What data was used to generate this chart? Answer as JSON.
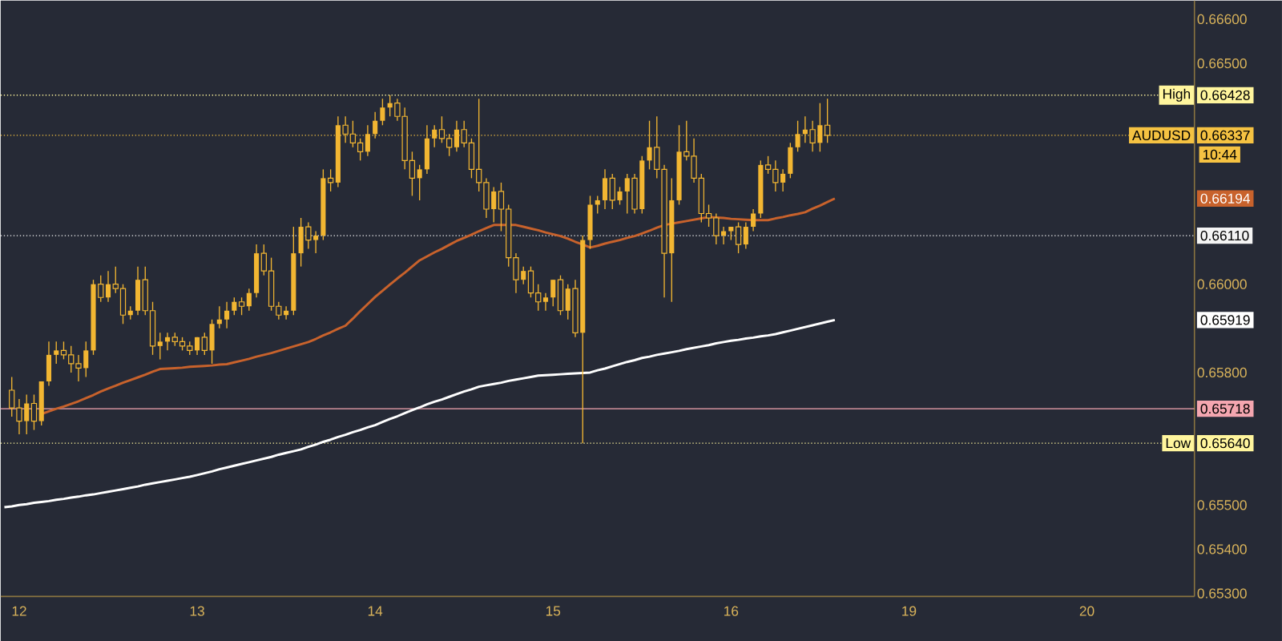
{
  "chart_data": {
    "type": "candlestick",
    "color": "#f2b632",
    "categories": [
      null,
      null,
      "12",
      null,
      null,
      null,
      null,
      null,
      null,
      null,
      null,
      null,
      null,
      null,
      null,
      null,
      null,
      null,
      null,
      null,
      null,
      null,
      null,
      null,
      null,
      null,
      "13",
      null,
      null,
      null,
      null,
      null,
      null,
      null,
      null,
      null,
      null,
      null,
      null,
      null,
      null,
      null,
      null,
      null,
      null,
      null,
      null,
      null,
      null,
      null,
      "14",
      null,
      null,
      null,
      null,
      null,
      null,
      null,
      null,
      null,
      null,
      null,
      null,
      null,
      null,
      null,
      null,
      null,
      null,
      null,
      null,
      null,
      null,
      null,
      "15",
      null,
      null,
      null,
      null,
      null,
      null,
      null,
      null,
      null,
      null,
      null,
      null,
      null,
      null,
      null,
      null,
      null,
      null,
      null,
      null,
      null,
      null,
      null,
      "16",
      null,
      null,
      null,
      null,
      null,
      null,
      null,
      null,
      null,
      null,
      null,
      null,
      null,
      null,
      null,
      null,
      null,
      null,
      null,
      null,
      null,
      null,
      null,
      "19",
      null,
      null,
      null,
      null,
      null,
      null,
      null,
      null,
      null,
      null,
      null,
      null,
      null,
      null,
      null,
      null,
      null,
      null,
      null,
      null,
      null,
      null,
      null,
      "20",
      null,
      null,
      null,
      null,
      null,
      null,
      null,
      null,
      null,
      null,
      null,
      null,
      null,
      null
    ],
    "ohlc": [
      null,
      [
        0.6576,
        0.6579,
        0.657,
        0.6572
      ],
      [
        0.6572,
        0.6574,
        0.6566,
        0.6569
      ],
      [
        0.6569,
        0.6575,
        0.6566,
        0.6573
      ],
      [
        0.6573,
        0.6575,
        0.6567,
        0.6569
      ],
      [
        0.6569,
        0.6578,
        0.6568,
        0.6578
      ],
      [
        0.6578,
        0.6587,
        0.6577,
        0.6584
      ],
      [
        0.6584,
        0.6587,
        0.6582,
        0.6585
      ],
      [
        0.6585,
        0.6587,
        0.6583,
        0.6584
      ],
      [
        0.6584,
        0.6586,
        0.658,
        0.6582
      ],
      [
        0.6582,
        0.6584,
        0.6578,
        0.6581
      ],
      [
        0.6581,
        0.6587,
        0.6579,
        0.6585
      ],
      [
        0.6585,
        0.6601,
        0.6584,
        0.66
      ],
      [
        0.66,
        0.6602,
        0.6596,
        0.6597
      ],
      [
        0.6597,
        0.6603,
        0.6596,
        0.66
      ],
      [
        0.66,
        0.6604,
        0.6598,
        0.6599
      ],
      [
        0.6599,
        0.66,
        0.6591,
        0.6593
      ],
      [
        0.6593,
        0.6595,
        0.6592,
        0.6594
      ],
      [
        0.6594,
        0.6604,
        0.6593,
        0.6601
      ],
      [
        0.6601,
        0.6604,
        0.6593,
        0.6594
      ],
      [
        0.6594,
        0.6596,
        0.6584,
        0.6586
      ],
      [
        0.6586,
        0.6589,
        0.6583,
        0.6587
      ],
      [
        0.6587,
        0.6589,
        0.6585,
        0.6588
      ],
      [
        0.6588,
        0.6589,
        0.6586,
        0.6587
      ],
      [
        0.6587,
        0.6588,
        0.6585,
        0.6586
      ],
      [
        0.6586,
        0.6587,
        0.6584,
        0.6585
      ],
      [
        0.6585,
        0.6588,
        0.6584,
        0.6588
      ],
      [
        0.6588,
        0.6589,
        0.6584,
        0.6585
      ],
      [
        0.6585,
        0.6592,
        0.6582,
        0.6591
      ],
      [
        0.6591,
        0.6595,
        0.659,
        0.6592
      ],
      [
        0.6592,
        0.6596,
        0.659,
        0.6594
      ],
      [
        0.6594,
        0.6597,
        0.6593,
        0.6596
      ],
      [
        0.6596,
        0.6597,
        0.6593,
        0.6595
      ],
      [
        0.6595,
        0.6599,
        0.6594,
        0.6598
      ],
      [
        0.6598,
        0.6609,
        0.6597,
        0.6607
      ],
      [
        0.6607,
        0.6609,
        0.6602,
        0.6603
      ],
      [
        0.6603,
        0.6606,
        0.6594,
        0.6595
      ],
      [
        0.6595,
        0.6596,
        0.6592,
        0.6593
      ],
      [
        0.6593,
        0.6595,
        0.6592,
        0.6594
      ],
      [
        0.6594,
        0.6613,
        0.6593,
        0.6607
      ],
      [
        0.6607,
        0.6615,
        0.6604,
        0.6613
      ],
      [
        0.6613,
        0.6614,
        0.6608,
        0.661
      ],
      [
        0.661,
        0.6612,
        0.6607,
        0.6611
      ],
      [
        0.6611,
        0.6626,
        0.661,
        0.6624
      ],
      [
        0.6624,
        0.6626,
        0.6621,
        0.6623
      ],
      [
        0.6623,
        0.6638,
        0.6622,
        0.6636
      ],
      [
        0.6636,
        0.6638,
        0.6632,
        0.6634
      ],
      [
        0.6634,
        0.6637,
        0.6631,
        0.6632
      ],
      [
        0.6632,
        0.6633,
        0.6628,
        0.663
      ],
      [
        0.663,
        0.6636,
        0.6629,
        0.6634
      ],
      [
        0.6634,
        0.6639,
        0.6633,
        0.6637
      ],
      [
        0.6637,
        0.6642,
        0.6636,
        0.664
      ],
      [
        0.664,
        0.66428,
        0.6638,
        0.6641
      ],
      [
        0.6641,
        0.6642,
        0.6637,
        0.6638
      ],
      [
        0.6638,
        0.664,
        0.6626,
        0.6628
      ],
      [
        0.6628,
        0.663,
        0.662,
        0.6624
      ],
      [
        0.6624,
        0.6627,
        0.6619,
        0.6626
      ],
      [
        0.6626,
        0.6636,
        0.6625,
        0.6633
      ],
      [
        0.6633,
        0.6636,
        0.6631,
        0.6635
      ],
      [
        0.6635,
        0.6638,
        0.6632,
        0.6633
      ],
      [
        0.6633,
        0.6634,
        0.6629,
        0.6631
      ],
      [
        0.6631,
        0.6637,
        0.663,
        0.6635
      ],
      [
        0.6635,
        0.6637,
        0.6631,
        0.6632
      ],
      [
        0.6632,
        0.6633,
        0.6624,
        0.6626
      ],
      [
        0.6626,
        0.6642,
        0.6621,
        0.6623
      ],
      [
        0.6623,
        0.6624,
        0.6615,
        0.6617
      ],
      [
        0.6617,
        0.6622,
        0.6614,
        0.6621
      ],
      [
        0.6621,
        0.6623,
        0.6612,
        0.6617
      ],
      [
        0.6617,
        0.6618,
        0.6604,
        0.6606
      ],
      [
        0.6606,
        0.6607,
        0.6598,
        0.6601
      ],
      [
        0.6601,
        0.6604,
        0.66,
        0.6603
      ],
      [
        0.6603,
        0.6604,
        0.6597,
        0.6598
      ],
      [
        0.6598,
        0.66,
        0.6594,
        0.6596
      ],
      [
        0.6596,
        0.6598,
        0.6594,
        0.6597
      ],
      [
        0.6597,
        0.6601,
        0.6595,
        0.6601
      ],
      [
        0.6601,
        0.6602,
        0.6593,
        0.6594
      ],
      [
        0.6594,
        0.66,
        0.6592,
        0.6599
      ],
      [
        0.6599,
        0.6601,
        0.6588,
        0.6589
      ],
      [
        0.6589,
        0.6611,
        0.6564,
        0.661
      ],
      [
        0.661,
        0.662,
        0.6608,
        0.6618
      ],
      [
        0.6618,
        0.662,
        0.6616,
        0.6619
      ],
      [
        0.6619,
        0.6626,
        0.6617,
        0.6624
      ],
      [
        0.6624,
        0.6625,
        0.6617,
        0.6619
      ],
      [
        0.6619,
        0.6622,
        0.6618,
        0.6621
      ],
      [
        0.6621,
        0.6625,
        0.6616,
        0.6624
      ],
      [
        0.6624,
        0.6625,
        0.6616,
        0.6617
      ],
      [
        0.6617,
        0.6629,
        0.6616,
        0.6628
      ],
      [
        0.6628,
        0.6637,
        0.6626,
        0.6631
      ],
      [
        0.6631,
        0.6638,
        0.6624,
        0.6626
      ],
      [
        0.6626,
        0.6627,
        0.6597,
        0.6607
      ],
      [
        0.6607,
        0.6624,
        0.6596,
        0.6619
      ],
      [
        0.6619,
        0.6636,
        0.6618,
        0.663
      ],
      [
        0.663,
        0.6637,
        0.6628,
        0.6629
      ],
      [
        0.6629,
        0.6633,
        0.6623,
        0.6624
      ],
      [
        0.6624,
        0.6625,
        0.6614,
        0.6616
      ],
      [
        0.6616,
        0.6618,
        0.6613,
        0.6615
      ],
      [
        0.6615,
        0.6616,
        0.6609,
        0.6611
      ],
      [
        0.6611,
        0.6613,
        0.6609,
        0.6612
      ],
      [
        0.6612,
        0.6613,
        0.661,
        0.6613
      ],
      [
        0.6613,
        0.6614,
        0.6607,
        0.6609
      ],
      [
        0.6609,
        0.6614,
        0.6608,
        0.6613
      ],
      [
        0.6613,
        0.6617,
        0.6612,
        0.6616
      ],
      [
        0.6616,
        0.6628,
        0.6615,
        0.6627
      ],
      [
        0.6627,
        0.6629,
        0.6625,
        0.6626
      ],
      [
        0.6626,
        0.6628,
        0.6621,
        0.6623
      ],
      [
        0.6623,
        0.6626,
        0.6621,
        0.6625
      ],
      [
        0.6625,
        0.6632,
        0.6624,
        0.6631
      ],
      [
        0.6631,
        0.6637,
        0.663,
        0.6634
      ],
      [
        0.6634,
        0.6638,
        0.6632,
        0.6635
      ],
      [
        0.6635,
        0.6637,
        0.663,
        0.6632
      ],
      [
        0.6632,
        0.6641,
        0.663,
        0.6636
      ],
      [
        0.6636,
        0.6642,
        0.6632,
        0.66337
      ],
      null,
      null,
      null,
      null,
      null,
      null,
      null,
      null,
      null,
      null,
      null,
      null,
      null,
      null,
      null,
      null,
      null,
      null,
      null,
      null,
      null,
      null,
      null,
      null,
      null,
      null,
      null,
      null,
      null,
      null,
      null,
      null,
      null,
      null,
      null,
      null,
      null,
      null,
      null,
      null,
      null,
      null,
      null,
      null,
      null,
      null,
      null,
      null,
      null
    ],
    "series": [
      {
        "type": "line",
        "color": "#c8622c",
        "values": [
          null,
          null,
          null,
          null,
          null,
          0.65706,
          0.65712,
          0.65718,
          0.65723,
          0.65729,
          0.65735,
          0.65742,
          0.65749,
          0.65757,
          0.65764,
          0.6577,
          0.65777,
          0.65783,
          0.65789,
          0.65795,
          0.65802,
          0.65808,
          0.65809,
          0.6581,
          0.65811,
          0.65813,
          0.65814,
          0.65815,
          0.65816,
          0.65818,
          0.65819,
          0.65823,
          0.65827,
          0.65831,
          0.65836,
          0.6584,
          0.65844,
          0.65849,
          0.65854,
          0.65859,
          0.65864,
          0.65869,
          0.65876,
          0.65884,
          0.65891,
          0.65899,
          0.65906,
          0.65922,
          0.65939,
          0.65955,
          0.65971,
          0.65985,
          0.65999,
          0.66013,
          0.66026,
          0.6604,
          0.66054,
          0.66063,
          0.66072,
          0.6608,
          0.66089,
          0.66098,
          0.66105,
          0.66112,
          0.6612,
          0.66127,
          0.66134,
          0.66134,
          0.66134,
          0.66134,
          0.6613,
          0.66126,
          0.66122,
          0.66117,
          0.66113,
          0.66109,
          0.66103,
          0.66096,
          0.6609,
          0.66083,
          0.66087,
          0.66092,
          0.66096,
          0.661,
          0.66105,
          0.66109,
          0.66115,
          0.66121,
          0.66128,
          0.66134,
          0.66137,
          0.6614,
          0.66143,
          0.66146,
          0.66149,
          0.66152,
          0.66151,
          0.6615,
          0.66148,
          0.66147,
          0.66146,
          0.66145,
          0.66145,
          0.66145,
          0.66149,
          0.66152,
          0.66156,
          0.66159,
          0.66163,
          0.66171,
          0.66178,
          0.66186,
          0.66194,
          null,
          null,
          null,
          null,
          null,
          null,
          null,
          null,
          null,
          null,
          null,
          null,
          null,
          null,
          null,
          null,
          null,
          null,
          null,
          null,
          null,
          null,
          null,
          null,
          null,
          null,
          null,
          null,
          null,
          null,
          null,
          null,
          null,
          null,
          null,
          null,
          null,
          null,
          null,
          null,
          null,
          null,
          null,
          null,
          null,
          null,
          null,
          null
        ]
      },
      {
        "type": "line",
        "color": "#ffffff",
        "values": [
          0.65495,
          0.65497,
          0.655,
          0.65502,
          0.65505,
          0.65507,
          0.65509,
          0.65512,
          0.65514,
          0.65517,
          0.65519,
          0.65522,
          0.65524,
          0.65527,
          0.6553,
          0.65533,
          0.65536,
          0.65539,
          0.65542,
          0.65546,
          0.65549,
          0.65552,
          0.65555,
          0.65558,
          0.65561,
          0.65564,
          0.65568,
          0.65572,
          0.65576,
          0.65581,
          0.65585,
          0.65589,
          0.65593,
          0.65597,
          0.65601,
          0.65605,
          0.65609,
          0.65614,
          0.65618,
          0.65622,
          0.65626,
          0.65632,
          0.65637,
          0.65643,
          0.65648,
          0.65654,
          0.65659,
          0.65665,
          0.6567,
          0.65676,
          0.65681,
          0.65688,
          0.65695,
          0.65701,
          0.65708,
          0.65715,
          0.65721,
          0.65728,
          0.65734,
          0.65739,
          0.65745,
          0.65751,
          0.65757,
          0.65762,
          0.65768,
          0.65771,
          0.65774,
          0.65777,
          0.65781,
          0.65784,
          0.65787,
          0.6579,
          0.65793,
          0.65794,
          0.65795,
          0.65796,
          0.65797,
          0.65798,
          0.65799,
          0.658,
          0.65805,
          0.65809,
          0.65814,
          0.65819,
          0.65824,
          0.65828,
          0.65833,
          0.65836,
          0.6584,
          0.65843,
          0.65846,
          0.65849,
          0.65853,
          0.65856,
          0.65859,
          0.65862,
          0.65866,
          0.65869,
          0.65872,
          0.65874,
          0.65877,
          0.65879,
          0.65882,
          0.65884,
          0.65887,
          0.65891,
          0.65895,
          0.65899,
          0.65903,
          0.65907,
          0.65911,
          0.65915,
          0.65919,
          null,
          null,
          null,
          null,
          null,
          null,
          null,
          null,
          null,
          null,
          null,
          null,
          null,
          null,
          null,
          null,
          null,
          null,
          null,
          null,
          null,
          null,
          null,
          null,
          null,
          null,
          null,
          null,
          null,
          null,
          null,
          null,
          null,
          null,
          null,
          null,
          null,
          null,
          null,
          null,
          null,
          null,
          null,
          null,
          null,
          null,
          null,
          null
        ]
      }
    ],
    "ylim": [
      0.65293,
      0.66642
    ],
    "yticks": [
      {
        "value": 0.666,
        "label": "0.66600"
      },
      {
        "value": 0.665,
        "label": "0.66500"
      },
      {
        "value": 0.66428,
        "label": "0.66428"
      },
      {
        "value": 0.66337,
        "label": "0.66337"
      },
      {
        "value": 0.66194,
        "label": "0.66194"
      },
      {
        "value": 0.6611,
        "label": "0.66110"
      },
      {
        "value": 0.66,
        "label": "0.66000"
      },
      {
        "value": 0.65919,
        "label": "0.65919"
      },
      {
        "value": 0.658,
        "label": "0.65800"
      },
      {
        "value": 0.65718,
        "label": "0.65718"
      },
      {
        "value": 0.6564,
        "label": "0.65640"
      },
      {
        "value": 0.655,
        "label": "0.65500"
      },
      {
        "value": 0.654,
        "label": "0.65400"
      },
      {
        "value": 0.653,
        "label": "0.65300"
      }
    ],
    "ref_lines": [
      {
        "axis": "y",
        "value": 0.66428,
        "label": "High",
        "color": "#fff59d",
        "line_style": "dotted"
      },
      {
        "axis": "y",
        "value": 0.66337,
        "label": "AUDUSD",
        "color": "#f5c242",
        "line_style": "dotted"
      },
      {
        "axis": "y",
        "value": 0.6611,
        "color": "#f4f4f4",
        "line_style": "dotted"
      },
      {
        "axis": "y",
        "value": 0.65718,
        "color": "#f4a6b0",
        "line_style": "solid"
      },
      {
        "axis": "y",
        "value": 0.6564,
        "label": "Low",
        "color": "#fff59d",
        "line_style": "dotted"
      }
    ],
    "annotations": [
      "10:44"
    ]
  }
}
